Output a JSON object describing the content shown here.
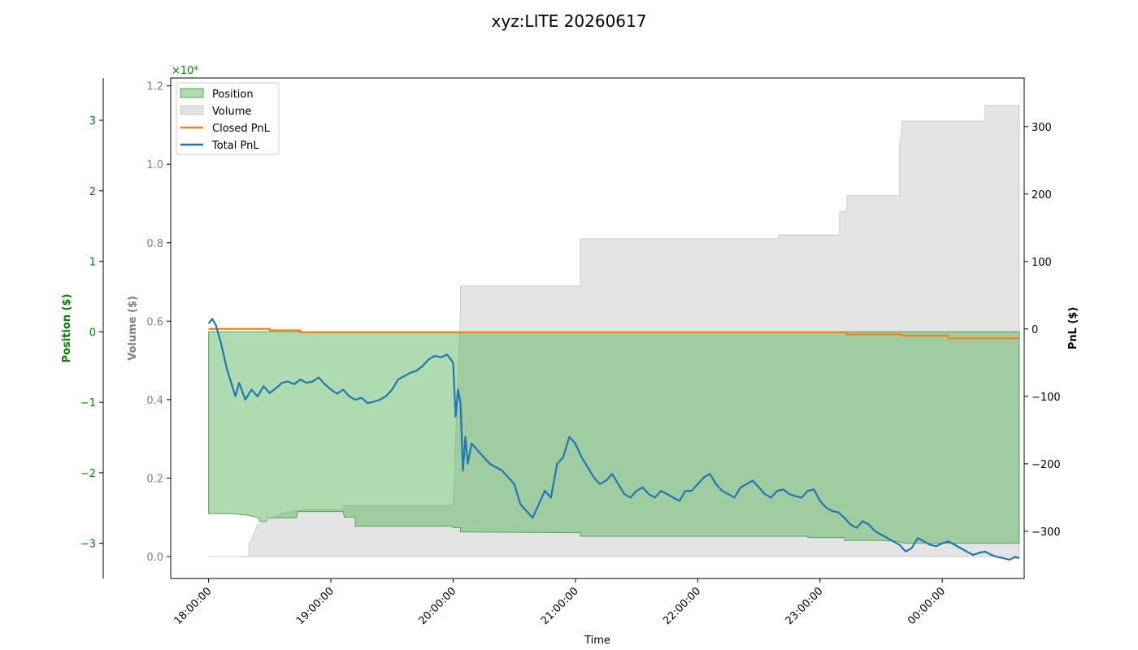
{
  "chart_data": {
    "type": "line",
    "title": "xyz:LITE 20260617",
    "xlabel": "Time",
    "x_ticks": [
      "18:00:00",
      "19:00:00",
      "20:00:00",
      "21:00:00",
      "22:00:00",
      "23:00:00",
      "00:00:00"
    ],
    "x_range_hours": [
      17.69,
      24.67
    ],
    "axes": {
      "position": {
        "label": "Position ($)",
        "color": "#008000",
        "ylim": [
          -3.5,
          3.6
        ],
        "ticks": [
          -3,
          -2,
          -1,
          0,
          1,
          2,
          3
        ],
        "tick_labels": [
          "−3",
          "−2",
          "−1",
          "0",
          "1",
          "2",
          "3"
        ],
        "multiplier": "×10⁴"
      },
      "volume": {
        "label": "Volume ($)",
        "color": "#808080",
        "ylim": [
          -0.056,
          1.22
        ],
        "ticks": [
          0.0,
          0.2,
          0.4,
          0.6,
          0.8,
          1.0,
          1.2
        ],
        "tick_labels": [
          "0.0",
          "0.2",
          "0.4",
          "0.6",
          "0.8",
          "1.0",
          "1.2"
        ]
      },
      "pnl": {
        "label": "PnL ($)",
        "color": "#000000",
        "ylim": [
          -370,
          372
        ],
        "ticks": [
          -300,
          -200,
          -100,
          0,
          100,
          200,
          300
        ],
        "tick_labels": [
          "−300",
          "−200",
          "−100",
          "0",
          "100",
          "200",
          "300"
        ]
      }
    },
    "legend": {
      "placement": "upper-left",
      "entries": [
        {
          "label": "Position",
          "kind": "patch",
          "color": "#8fcc8f"
        },
        {
          "label": "Volume",
          "kind": "patch",
          "color": "#d9d9d9"
        },
        {
          "label": "Closed PnL",
          "kind": "line",
          "color": "#ff7f0e"
        },
        {
          "label": "Total PnL",
          "kind": "line",
          "color": "#1f77b4"
        }
      ]
    },
    "series": [
      {
        "name": "Position",
        "axis": "position",
        "color": "#8fcc8f",
        "x": [
          18.0,
          18.2,
          18.3,
          18.32,
          18.41,
          18.42,
          18.47,
          18.48,
          18.49,
          18.5,
          18.72,
          18.73,
          19.0,
          19.1,
          19.11,
          19.2,
          19.2,
          20.0,
          20.0,
          20.06,
          20.06,
          20.1,
          21.0,
          21.04,
          21.04,
          21.5,
          22.5,
          22.9,
          22.9,
          23.2,
          23.2,
          23.5,
          23.6,
          23.62,
          23.7,
          23.72,
          24.5,
          24.63
        ],
        "y": [
          -2.58,
          -2.58,
          -2.6,
          -2.6,
          -2.64,
          -2.69,
          -2.69,
          -2.64,
          -2.64,
          -2.64,
          -2.64,
          -2.55,
          -2.55,
          -2.55,
          -2.63,
          -2.63,
          -2.76,
          -2.76,
          -2.78,
          -2.78,
          -2.84,
          -2.84,
          -2.85,
          -2.85,
          -2.9,
          -2.9,
          -2.9,
          -2.9,
          -2.92,
          -2.92,
          -2.96,
          -2.96,
          -2.97,
          -2.97,
          -3.0,
          -3.0,
          -3.0,
          -3.0
        ]
      },
      {
        "name": "Volume",
        "axis": "volume",
        "color": "#d9d9d9",
        "x": [
          18.0,
          18.33,
          18.33,
          18.4,
          18.6,
          18.8,
          19.0,
          19.1,
          19.1,
          19.5,
          20.0,
          20.06,
          20.06,
          21.04,
          21.04,
          22.66,
          22.66,
          23.16,
          23.16,
          23.22,
          23.22,
          23.65,
          23.65,
          23.67,
          23.67,
          24.35,
          24.35,
          24.63
        ],
        "y": [
          0.0,
          0.0,
          0.03,
          0.08,
          0.11,
          0.12,
          0.12,
          0.12,
          0.13,
          0.13,
          0.13,
          0.63,
          0.69,
          0.69,
          0.81,
          0.81,
          0.82,
          0.82,
          0.88,
          0.88,
          0.92,
          0.92,
          1.05,
          1.09,
          1.11,
          1.11,
          1.15,
          1.15
        ]
      },
      {
        "name": "Closed PnL",
        "axis": "pnl",
        "color": "#ff7f0e",
        "x": [
          18.0,
          18.5,
          18.5,
          18.75,
          18.75,
          23.22,
          23.22,
          23.67,
          23.67,
          24.05,
          24.05,
          24.63
        ],
        "y": [
          0,
          0,
          -2,
          -2,
          -5,
          -5,
          -8,
          -8,
          -10,
          -10,
          -14,
          -14
        ]
      },
      {
        "name": "Total PnL",
        "axis": "pnl",
        "color": "#1f77b4",
        "x": [
          18.0,
          18.03,
          18.06,
          18.1,
          18.15,
          18.22,
          18.25,
          18.3,
          18.35,
          18.4,
          18.45,
          18.5,
          18.55,
          18.6,
          18.65,
          18.7,
          18.75,
          18.8,
          18.85,
          18.9,
          18.95,
          19.0,
          19.05,
          19.1,
          19.15,
          19.2,
          19.25,
          19.3,
          19.35,
          19.4,
          19.45,
          19.5,
          19.55,
          19.6,
          19.65,
          19.7,
          19.75,
          19.8,
          19.85,
          19.9,
          19.95,
          20.0,
          20.02,
          20.04,
          20.06,
          20.08,
          20.1,
          20.12,
          20.15,
          20.2,
          20.25,
          20.3,
          20.35,
          20.4,
          20.45,
          20.5,
          20.55,
          20.6,
          20.65,
          20.7,
          20.75,
          20.8,
          20.85,
          20.9,
          20.95,
          21.0,
          21.05,
          21.1,
          21.15,
          21.2,
          21.25,
          21.3,
          21.35,
          21.4,
          21.45,
          21.5,
          21.55,
          21.6,
          21.65,
          21.7,
          21.75,
          21.8,
          21.85,
          21.9,
          21.95,
          22.0,
          22.05,
          22.1,
          22.15,
          22.2,
          22.25,
          22.3,
          22.35,
          22.4,
          22.45,
          22.5,
          22.55,
          22.6,
          22.65,
          22.7,
          22.75,
          22.8,
          22.85,
          22.9,
          22.95,
          23.0,
          23.05,
          23.1,
          23.15,
          23.2,
          23.25,
          23.3,
          23.35,
          23.4,
          23.45,
          23.5,
          23.55,
          23.6,
          23.65,
          23.7,
          23.75,
          23.8,
          23.85,
          23.9,
          23.95,
          24.0,
          24.05,
          24.1,
          24.15,
          24.2,
          24.25,
          24.3,
          24.35,
          24.4,
          24.45,
          24.5,
          24.55,
          24.6,
          24.63
        ],
        "y": [
          8,
          15,
          5,
          -20,
          -60,
          -100,
          -80,
          -105,
          -90,
          -100,
          -85,
          -95,
          -88,
          -80,
          -78,
          -82,
          -75,
          -80,
          -78,
          -72,
          -82,
          -90,
          -96,
          -90,
          -100,
          -105,
          -102,
          -110,
          -108,
          -105,
          -100,
          -90,
          -75,
          -70,
          -65,
          -62,
          -55,
          -45,
          -40,
          -42,
          -38,
          -50,
          -130,
          -90,
          -110,
          -210,
          -160,
          -200,
          -170,
          -180,
          -190,
          -200,
          -205,
          -210,
          -220,
          -230,
          -260,
          -270,
          -280,
          -260,
          -240,
          -250,
          -200,
          -190,
          -160,
          -170,
          -190,
          -205,
          -220,
          -230,
          -225,
          -215,
          -230,
          -245,
          -250,
          -240,
          -235,
          -245,
          -250,
          -240,
          -245,
          -250,
          -255,
          -240,
          -240,
          -230,
          -220,
          -215,
          -230,
          -240,
          -245,
          -250,
          -235,
          -230,
          -225,
          -235,
          -245,
          -250,
          -240,
          -238,
          -245,
          -248,
          -250,
          -240,
          -238,
          -255,
          -265,
          -270,
          -272,
          -280,
          -290,
          -295,
          -285,
          -290,
          -300,
          -305,
          -310,
          -315,
          -320,
          -330,
          -325,
          -310,
          -315,
          -320,
          -322,
          -318,
          -315,
          -320,
          -325,
          -330,
          -335,
          -332,
          -330,
          -335,
          -338,
          -340,
          -342,
          -338,
          -340
        ]
      }
    ]
  }
}
